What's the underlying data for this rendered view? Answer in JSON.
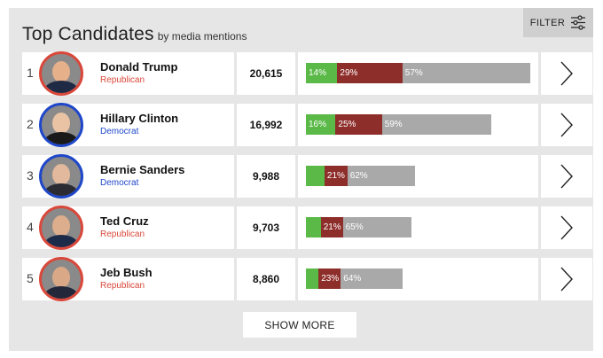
{
  "header": {
    "title": "Top Candidates",
    "subtitle": "by media mentions",
    "filter_label": "FILTER",
    "filter_icon": "sliders-icon"
  },
  "colors": {
    "positive": "#5ab947",
    "neutral": "#8e2e2b",
    "negative": "#a9a9a9",
    "republican": "#d9483b",
    "democrat": "#1f47c9"
  },
  "candidates": [
    {
      "rank": "1",
      "name": "Donald Trump",
      "party": "Republican",
      "party_key": "rep",
      "mentions": "20,615",
      "mentions_value": 20615,
      "sentiment": [
        {
          "kind": "pos",
          "value": 14,
          "label": "14%"
        },
        {
          "kind": "neu",
          "value": 29,
          "label": "29%"
        },
        {
          "kind": "neg",
          "value": 57,
          "label": "57%"
        }
      ]
    },
    {
      "rank": "2",
      "name": "Hillary Clinton",
      "party": "Democrat",
      "party_key": "dem",
      "mentions": "16,992",
      "mentions_value": 16992,
      "sentiment": [
        {
          "kind": "pos",
          "value": 16,
          "label": "16%"
        },
        {
          "kind": "neu",
          "value": 25,
          "label": "25%"
        },
        {
          "kind": "neg",
          "value": 59,
          "label": "59%"
        }
      ]
    },
    {
      "rank": "3",
      "name": "Bernie Sanders",
      "party": "Democrat",
      "party_key": "dem",
      "mentions": "9,988",
      "mentions_value": 9988,
      "sentiment": [
        {
          "kind": "pos",
          "value": 17,
          "label": ""
        },
        {
          "kind": "neu",
          "value": 21,
          "label": "21%"
        },
        {
          "kind": "neg",
          "value": 62,
          "label": "62%"
        }
      ]
    },
    {
      "rank": "4",
      "name": "Ted Cruz",
      "party": "Republican",
      "party_key": "rep",
      "mentions": "9,703",
      "mentions_value": 9703,
      "sentiment": [
        {
          "kind": "pos",
          "value": 14,
          "label": ""
        },
        {
          "kind": "neu",
          "value": 21,
          "label": "21%"
        },
        {
          "kind": "neg",
          "value": 65,
          "label": "65%"
        }
      ]
    },
    {
      "rank": "5",
      "name": "Jeb Bush",
      "party": "Republican",
      "party_key": "rep",
      "mentions": "8,860",
      "mentions_value": 8860,
      "sentiment": [
        {
          "kind": "pos",
          "value": 13,
          "label": ""
        },
        {
          "kind": "neu",
          "value": 23,
          "label": "23%"
        },
        {
          "kind": "neg",
          "value": 64,
          "label": "64%"
        }
      ]
    }
  ],
  "show_more_label": "SHOW MORE",
  "row_action_icon": "chevron-right-icon"
}
